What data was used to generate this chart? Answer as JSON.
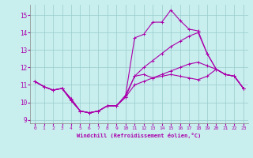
{
  "xlabel": "Windchill (Refroidissement éolien,°C)",
  "xlim": [
    -0.5,
    23.5
  ],
  "ylim": [
    8.8,
    15.6
  ],
  "yticks": [
    9,
    10,
    11,
    12,
    13,
    14,
    15
  ],
  "xticks": [
    0,
    1,
    2,
    3,
    4,
    5,
    6,
    7,
    8,
    9,
    10,
    11,
    12,
    13,
    14,
    15,
    16,
    17,
    18,
    19,
    20,
    21,
    22,
    23
  ],
  "bg_color": "#c8eeee",
  "grid_color": "#99cccc",
  "line_color": "#aa00aa",
  "line1": [
    11.2,
    10.9,
    10.7,
    10.8,
    10.1,
    9.5,
    9.4,
    9.5,
    9.8,
    9.8,
    10.4,
    11.5,
    11.6,
    11.4,
    11.5,
    11.6,
    11.5,
    11.4,
    11.3,
    11.5,
    11.9,
    11.6,
    11.5,
    10.8
  ],
  "line2": [
    11.2,
    10.9,
    10.7,
    10.8,
    10.1,
    9.5,
    9.4,
    9.5,
    9.8,
    9.8,
    10.4,
    13.7,
    13.9,
    14.6,
    14.6,
    15.3,
    14.7,
    14.2,
    14.1,
    12.8,
    11.9,
    11.6,
    11.5,
    10.8
  ],
  "line3": [
    11.2,
    10.9,
    10.7,
    10.8,
    10.2,
    9.5,
    9.4,
    9.5,
    9.8,
    9.8,
    10.3,
    11.5,
    12.0,
    12.4,
    12.8,
    13.2,
    13.5,
    13.8,
    14.0,
    12.8,
    11.9,
    11.6,
    11.5,
    10.8
  ],
  "line4": [
    11.2,
    10.9,
    10.7,
    10.8,
    10.2,
    9.5,
    9.4,
    9.5,
    9.8,
    9.8,
    10.3,
    11.0,
    11.2,
    11.4,
    11.6,
    11.8,
    12.0,
    12.2,
    12.3,
    12.1,
    11.9,
    11.6,
    11.5,
    10.8
  ]
}
